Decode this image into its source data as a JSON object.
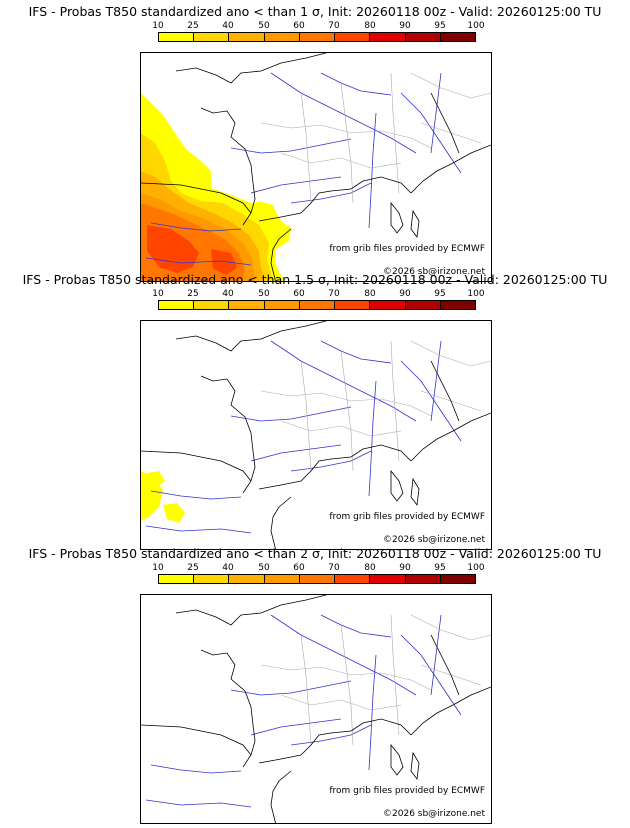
{
  "scale": {
    "labels": [
      "10",
      "25",
      "40",
      "50",
      "60",
      "70",
      "80",
      "90",
      "95",
      "100"
    ],
    "colors": [
      "#ffff00",
      "#ffd700",
      "#ffb000",
      "#ff9900",
      "#ff7700",
      "#ff4400",
      "#e00000",
      "#b00000",
      "#800000"
    ]
  },
  "panels": [
    {
      "title": "IFS - Probas T850  standardized ano < than 1 σ, Init: 20260118 00z - Valid: 20260125:00 TU",
      "threshold": "1 σ"
    },
    {
      "title": "IFS - Probas T850  standardized ano < than 1.5 σ, Init: 20260118 00z - Valid: 20260125:00 TU",
      "threshold": "1.5 σ"
    },
    {
      "title": "IFS - Probas T850  standardized ano < than 2 σ, Init: 20260118 00z - Valid: 20260125:00 TU",
      "threshold": "2 σ"
    }
  ],
  "credits": {
    "source": "from grib files provided by ECMWF",
    "copyright": "©2026 sb@irizone.net"
  },
  "colors": {
    "coast": "#000000",
    "rivers": "#3333cc",
    "borders": "#aaaaaa"
  }
}
